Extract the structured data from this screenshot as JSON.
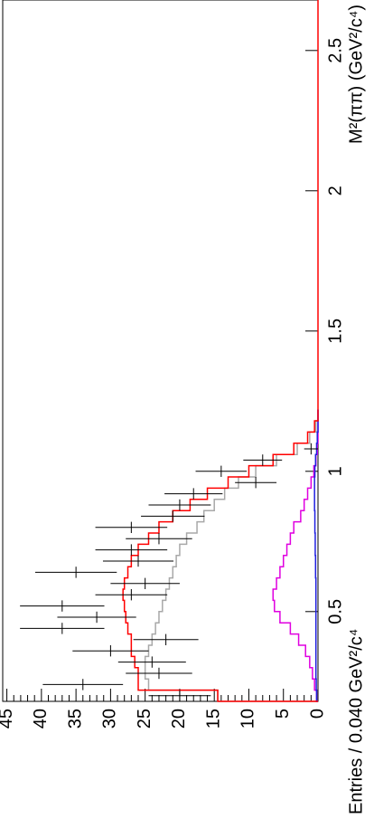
{
  "chart_data": {
    "type": "histogram",
    "x_label": "M²(ππ) (GeV²/c⁴)",
    "y_label": "Entries / 0.040 GeV²/c⁴",
    "xlim": [
      0.18,
      2.68
    ],
    "ylim": [
      0,
      45.6
    ],
    "xticks": [
      0.5,
      1,
      1.5,
      2,
      2.5
    ],
    "yticks": [
      0,
      5,
      10,
      15,
      20,
      25,
      30,
      35,
      40,
      45
    ],
    "bins": [
      0.18,
      0.22,
      0.26,
      0.3,
      0.34,
      0.38,
      0.42,
      0.46,
      0.5,
      0.54,
      0.58,
      0.62,
      0.66,
      0.7,
      0.74,
      0.78,
      0.82,
      0.86,
      0.9,
      0.94,
      0.98,
      1.02,
      1.06,
      1.1,
      1.14,
      1.18,
      1.22
    ],
    "series": [
      {
        "color": "#a8a8a8",
        "values": [
          14.5,
          24.5,
          25,
          25,
          24.5,
          24,
          23.5,
          23,
          22.5,
          22,
          21.5,
          21,
          20.5,
          20,
          19,
          17.5,
          16.5,
          15,
          13.5,
          11.5,
          9,
          6,
          3,
          1.2,
          0.3,
          0
        ]
      },
      {
        "color": "#e000e0",
        "values": [
          0.2,
          0.5,
          0.8,
          1.2,
          1.8,
          2.8,
          4,
          5.5,
          6.3,
          6.5,
          6,
          5.5,
          5,
          4.5,
          4,
          3.5,
          2.5,
          2,
          1.5,
          1,
          0.6,
          0.3,
          0.1,
          0,
          0,
          0
        ]
      },
      {
        "color": "#2020e0",
        "values": [
          0.2,
          0.25,
          0.3,
          0.3,
          0.3,
          0.3,
          0.3,
          0.3,
          0.3,
          0.3,
          0.3,
          0.35,
          0.35,
          0.4,
          0.4,
          0.45,
          0.45,
          0.5,
          0.5,
          0.5,
          0.45,
          0.35,
          0.2,
          0.1,
          0,
          0
        ]
      },
      {
        "color": "#ff0000",
        "values": [
          14.5,
          26,
          26,
          26.5,
          27,
          27,
          27.5,
          27.8,
          28,
          28.2,
          28,
          27.5,
          27,
          26,
          24.5,
          23,
          21,
          18.5,
          16,
          13,
          10,
          6.5,
          3.5,
          1.5,
          0.5,
          0
        ]
      }
    ],
    "points": {
      "color": "#000000",
      "x": [
        0.2,
        0.24,
        0.28,
        0.32,
        0.36,
        0.4,
        0.44,
        0.48,
        0.52,
        0.56,
        0.6,
        0.64,
        0.68,
        0.72,
        0.76,
        0.8,
        0.84,
        0.88,
        0.92,
        0.96,
        1.0,
        1.04,
        1.08
      ],
      "values": [
        20,
        34,
        23,
        24,
        30,
        22,
        37,
        32,
        37,
        27,
        25,
        35,
        26,
        27,
        23,
        27,
        21,
        20,
        18,
        9,
        14,
        8,
        1
      ],
      "errors": [
        4.5,
        5.8,
        4.8,
        4.9,
        5.5,
        4.7,
        6.1,
        5.7,
        6.1,
        5.2,
        5,
        5.9,
        5.1,
        5.2,
        4.8,
        5.2,
        4.6,
        4.5,
        4.2,
        3,
        3.7,
        2.8,
        1
      ]
    }
  }
}
